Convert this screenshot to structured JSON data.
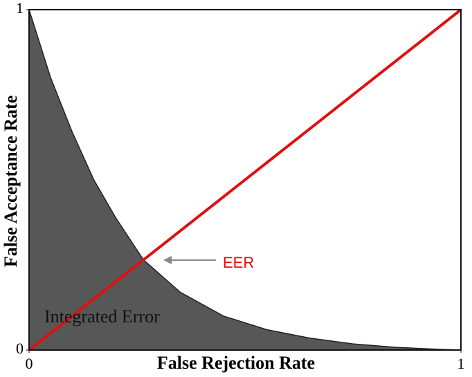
{
  "chart_data": {
    "type": "area",
    "xlabel": "False Rejection Rate",
    "ylabel": "False Acceptance Rate",
    "xlim": [
      0,
      1
    ],
    "ylim": [
      0,
      1
    ],
    "xticks": [
      0,
      1
    ],
    "yticks": [
      0,
      1
    ],
    "series": [
      {
        "style": "area",
        "color": "#575757",
        "x": [
          0,
          0.05,
          0.1,
          0.15,
          0.2,
          0.265,
          0.35,
          0.45,
          0.55,
          0.65,
          0.75,
          0.85,
          0.95,
          1
        ],
        "values": [
          1,
          0.8,
          0.64,
          0.5,
          0.39,
          0.265,
          0.17,
          0.1,
          0.06,
          0.035,
          0.018,
          0.008,
          0.002,
          0
        ]
      },
      {
        "style": "line",
        "color": "#e01010",
        "x": [
          0,
          1
        ],
        "values": [
          0,
          1
        ]
      }
    ],
    "annotations": [
      {
        "text": "Integrated Error"
      },
      {
        "text": "EER",
        "color": "#e01010"
      }
    ]
  }
}
